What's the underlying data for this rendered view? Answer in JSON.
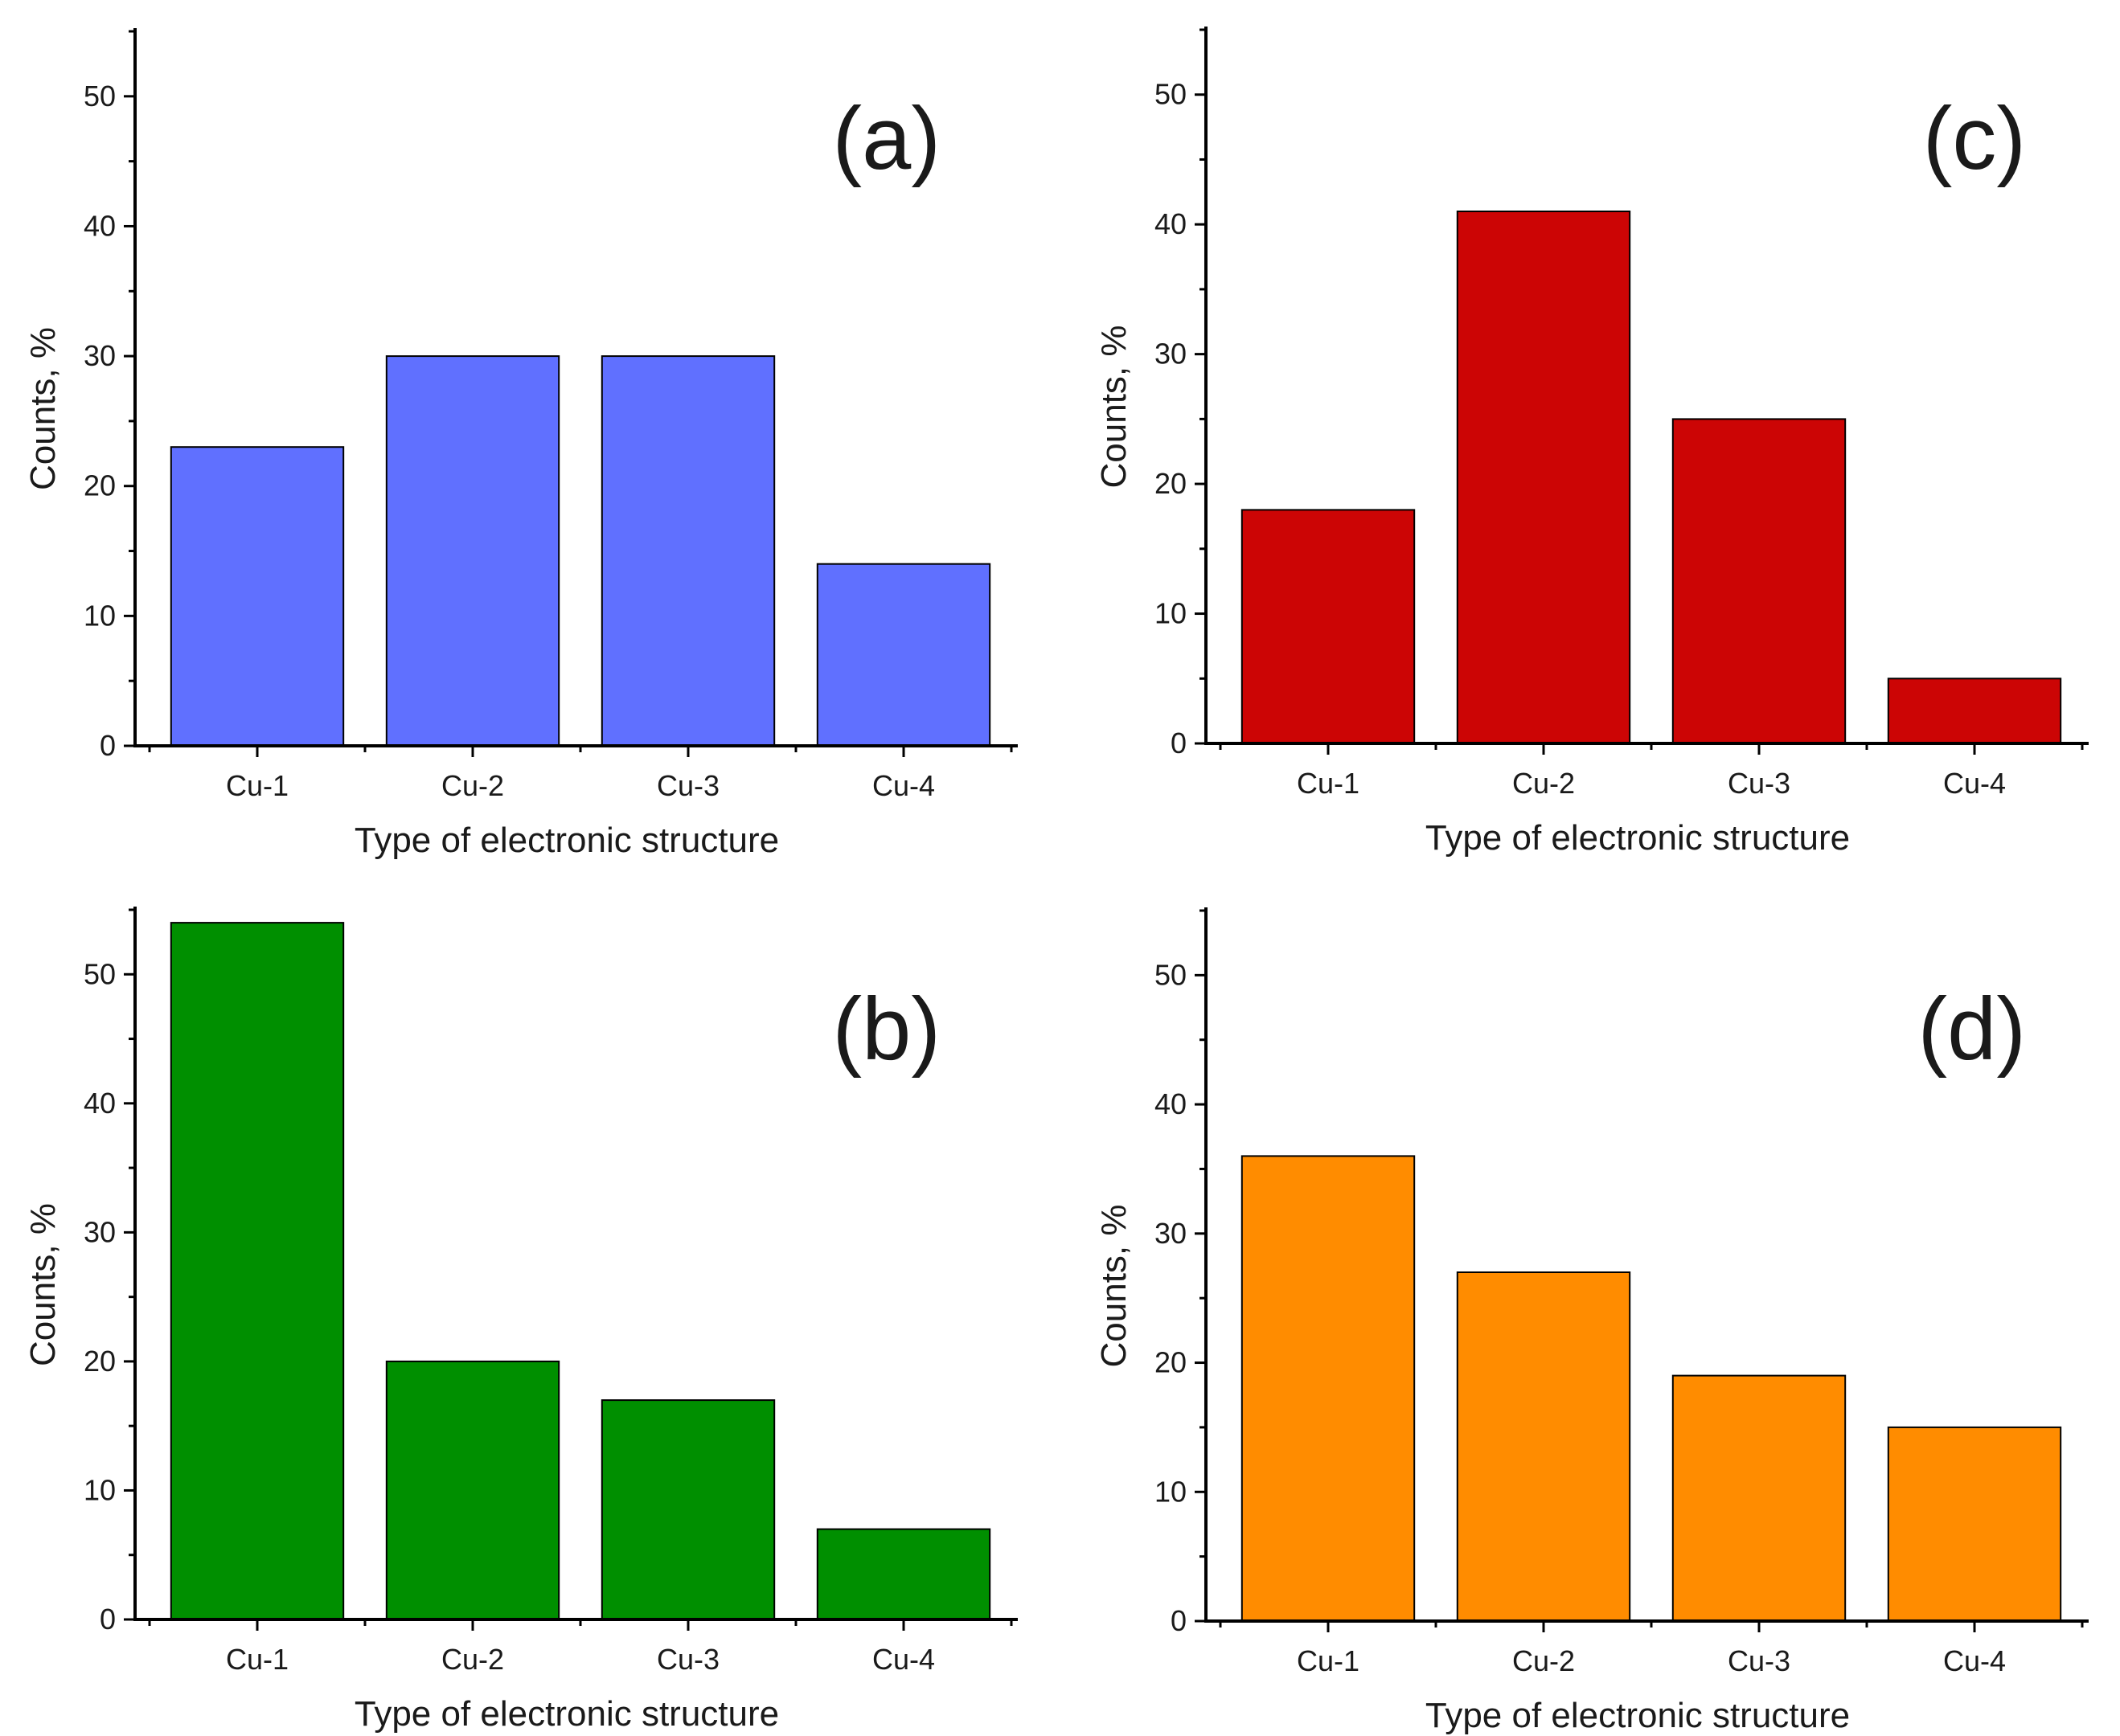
{
  "chart_data": [
    {
      "id": "a",
      "type": "bar",
      "panel_label": "(a)",
      "categories": [
        "Cu-1",
        "Cu-2",
        "Cu-3",
        "Cu-4"
      ],
      "values": [
        23,
        30,
        30,
        14
      ],
      "color": "#6070ff",
      "xlabel": "Type of electronic structure",
      "ylabel": "Counts, %",
      "ylim": [
        0,
        55
      ],
      "yticks": [
        "0",
        "10",
        "20",
        "30",
        "40",
        "50"
      ]
    },
    {
      "id": "c",
      "type": "bar",
      "panel_label": "(c)",
      "categories": [
        "Cu-1",
        "Cu-2",
        "Cu-3",
        "Cu-4"
      ],
      "values": [
        18,
        41,
        25,
        5
      ],
      "color": "#cc0505",
      "xlabel": "Type of electronic structure",
      "ylabel": "Counts, %",
      "ylim": [
        0,
        55
      ],
      "yticks": [
        "0",
        "10",
        "20",
        "30",
        "40",
        "50"
      ]
    },
    {
      "id": "b",
      "type": "bar",
      "panel_label": "(b)",
      "categories": [
        "Cu-1",
        "Cu-2",
        "Cu-3",
        "Cu-4"
      ],
      "values": [
        54,
        20,
        17,
        7
      ],
      "color": "#008f00",
      "xlabel": "Type of electronic structure",
      "ylabel": "Counts, %",
      "ylim": [
        0,
        55
      ],
      "yticks": [
        "0",
        "10",
        "20",
        "30",
        "40",
        "50"
      ]
    },
    {
      "id": "d",
      "type": "bar",
      "panel_label": "(d)",
      "categories": [
        "Cu-1",
        "Cu-2",
        "Cu-3",
        "Cu-4"
      ],
      "values": [
        36,
        27,
        19,
        15
      ],
      "color": "#ff8c00",
      "xlabel": "Type of electronic structure",
      "ylabel": "Counts, %",
      "ylim": [
        0,
        55
      ],
      "yticks": [
        "0",
        "10",
        "20",
        "30",
        "40",
        "50"
      ]
    }
  ]
}
